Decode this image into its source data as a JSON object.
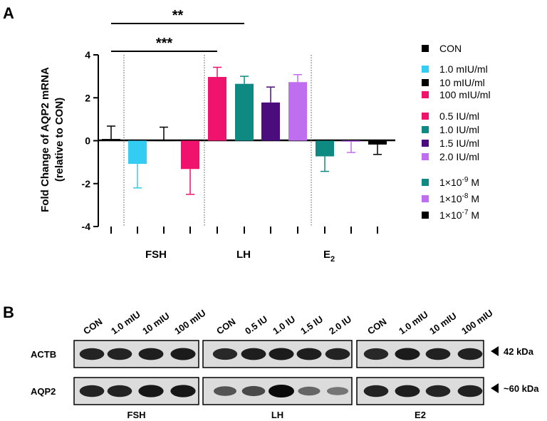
{
  "panel_a": {
    "label": "A",
    "ylabel_line1": "Fold Change of AQP2 mRNA",
    "ylabel_line2": "(relative to CON)",
    "group_labels": {
      "fsh": "FSH",
      "lh": "LH",
      "e2_base": "E",
      "e2_sub": "2"
    },
    "significance": [
      {
        "text": "**",
        "from_bar": 0,
        "to_bar": 5
      },
      {
        "text": "***",
        "from_bar": 0,
        "to_bar": 4
      }
    ],
    "legend": [
      {
        "label": "CON",
        "color": "#000000"
      },
      {
        "label": "1.0 mIU/ml",
        "color": "#33ccf2"
      },
      {
        "label": "10 mIU/ml",
        "color": "#000000"
      },
      {
        "label": "100 mIU/ml",
        "color": "#f0136d"
      },
      {
        "label": "0.5 IU/ml",
        "color": "#f0136d"
      },
      {
        "label": "1.0 IU/ml",
        "color": "#0e8a82"
      },
      {
        "label": "1.5 IU/ml",
        "color": "#4b0c7e"
      },
      {
        "label": "2.0 IU/ml",
        "color": "#c06ef0"
      },
      {
        "label_base": "1×10",
        "label_exp": "-9",
        "label_unit": " M",
        "color": "#0e8a82"
      },
      {
        "label_base": "1×10",
        "label_exp": "-8",
        "label_unit": " M",
        "color": "#c06ef0"
      },
      {
        "label_base": "1×10",
        "label_exp": "-7",
        "label_unit": " M",
        "color": "#000000"
      }
    ]
  },
  "chart_data": {
    "type": "bar",
    "title": "",
    "xlabel": "",
    "ylabel": "Fold Change of AQP2 mRNA (relative to CON)",
    "ylim": [
      -4,
      4
    ],
    "yticks": [
      "-4",
      "-2",
      "0",
      "2",
      "4"
    ],
    "ytick_values": [
      -4,
      -2,
      0,
      2,
      4
    ],
    "categories": [
      "CON",
      "1.0 mIU/ml",
      "10 mIU/ml",
      "100 mIU/ml",
      "0.5 IU/ml",
      "1.0 IU/ml",
      "1.5 IU/ml",
      "2.0 IU/ml",
      "1×10-9 M",
      "1×10-8 M",
      "1×10-7 M"
    ],
    "groups": [
      "FSH",
      "FSH",
      "FSH",
      "FSH",
      "LH",
      "LH",
      "LH",
      "LH",
      "E2",
      "E2",
      "E2"
    ],
    "values": [
      0.08,
      -1.08,
      0.03,
      -1.32,
      2.97,
      2.65,
      1.78,
      2.73,
      -0.73,
      -0.03,
      -0.18
    ],
    "errors": [
      0.6,
      1.12,
      0.6,
      1.18,
      0.45,
      0.35,
      0.72,
      0.35,
      0.7,
      0.52,
      0.46
    ],
    "colors": [
      "#000000",
      "#33ccf2",
      "#000000",
      "#f0136d",
      "#f0136d",
      "#0e8a82",
      "#4b0c7e",
      "#c06ef0",
      "#0e8a82",
      "#c06ef0",
      "#000000"
    ]
  },
  "panel_b": {
    "label": "B",
    "lanes": [
      "CON",
      "1.0 mIU",
      "10 mIU",
      "100 mIU",
      "CON",
      "0.5 IU",
      "1.0 IU",
      "1.5 IU",
      "2.0 IU",
      "CON",
      "1.0 mIU",
      "10 mIU",
      "100 mIU"
    ],
    "rows": [
      {
        "label": "ACTB",
        "size": "42 kDa",
        "intensity": [
          0.85,
          0.85,
          0.88,
          0.9,
          0.82,
          0.88,
          0.9,
          0.88,
          0.85,
          0.82,
          0.9,
          0.86,
          0.86
        ]
      },
      {
        "label": "AQP2",
        "size": "~60 kDa",
        "intensity": [
          0.85,
          0.85,
          0.92,
          0.92,
          0.55,
          0.62,
          1.0,
          0.45,
          0.35,
          0.85,
          0.88,
          0.84,
          0.86
        ]
      }
    ],
    "blot_groups": [
      "FSH",
      "LH",
      "E2"
    ]
  }
}
